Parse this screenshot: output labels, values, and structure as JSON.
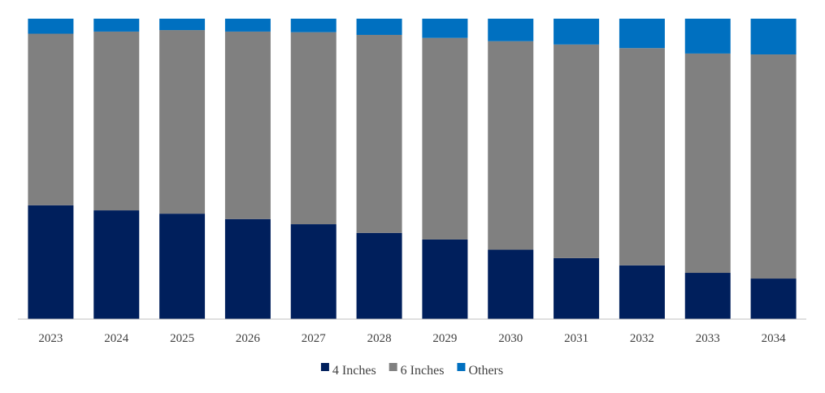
{
  "chart_data": {
    "type": "bar",
    "stacked": true,
    "normalized": true,
    "categories": [
      "2023",
      "2024",
      "2025",
      "2026",
      "2027",
      "2028",
      "2029",
      "2030",
      "2031",
      "2032",
      "2033",
      "2034"
    ],
    "series": [
      {
        "name": "4 Inches",
        "color": "#001f5c",
        "values": [
          37.9,
          36.2,
          35.1,
          33.3,
          31.6,
          28.7,
          26.5,
          23.1,
          20.3,
          17.9,
          15.4,
          13.5
        ]
      },
      {
        "name": "6 Inches",
        "color": "#808080",
        "values": [
          57.1,
          59.5,
          61.1,
          62.4,
          63.9,
          65.9,
          67.1,
          69.4,
          71.1,
          72.3,
          73.0,
          74.6
        ]
      },
      {
        "name": "Others",
        "color": "#0070c0",
        "values": [
          5.0,
          4.3,
          3.8,
          4.3,
          4.5,
          5.4,
          6.4,
          7.5,
          8.6,
          9.8,
          11.6,
          11.9
        ]
      }
    ],
    "ylim": [
      0,
      100
    ],
    "grid": false,
    "legend": "bottom-center"
  }
}
